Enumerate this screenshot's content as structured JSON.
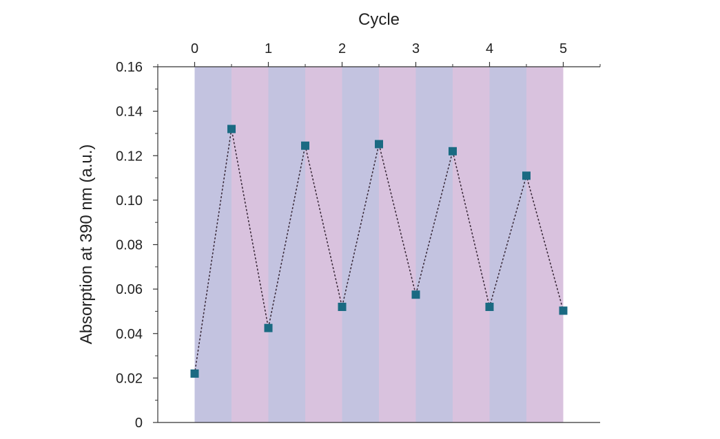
{
  "chart_data": {
    "type": "scatter",
    "title": "",
    "xlabel": "Cycle",
    "ylabel": "Absorption at 390 nm (a.u.)",
    "xlim": [
      -0.5,
      5.5
    ],
    "ylim": [
      0,
      0.16
    ],
    "x_ticks": [
      0,
      1,
      2,
      3,
      4,
      5
    ],
    "x_tick_labels": [
      "0",
      "1",
      "2",
      "3",
      "4",
      "5"
    ],
    "y_ticks": [
      0,
      0.02,
      0.04,
      0.06,
      0.08,
      0.1,
      0.12,
      0.14,
      0.16
    ],
    "y_tick_labels": [
      "0",
      "0.02",
      "0.04",
      "0.06",
      "0.08",
      "0.10",
      "0.12",
      "0.14",
      "0.16"
    ],
    "x_axis_position": "top",
    "grid": false,
    "legend": "none",
    "line_style": "dotted",
    "series": [
      {
        "x": [
          0,
          0.5,
          1,
          1.5,
          2,
          2.5,
          3,
          3.5,
          4,
          4.5,
          5
        ],
        "values": [
          0.022,
          0.132,
          0.0425,
          0.1245,
          0.052,
          0.1252,
          0.0575,
          0.122,
          0.052,
          0.111,
          0.0503
        ],
        "color": "#1a6a82"
      }
    ],
    "shaded_bands": [
      {
        "from": 0,
        "to": 0.5,
        "color": "#c3c3e0"
      },
      {
        "from": 0.5,
        "to": 1,
        "color": "#d9c2de"
      },
      {
        "from": 1,
        "to": 1.5,
        "color": "#c3c3e0"
      },
      {
        "from": 1.5,
        "to": 2,
        "color": "#d9c2de"
      },
      {
        "from": 2,
        "to": 2.5,
        "color": "#c3c3e0"
      },
      {
        "from": 2.5,
        "to": 3,
        "color": "#d9c2de"
      },
      {
        "from": 3,
        "to": 3.5,
        "color": "#c3c3e0"
      },
      {
        "from": 3.5,
        "to": 4,
        "color": "#d9c2de"
      },
      {
        "from": 4,
        "to": 4.5,
        "color": "#c3c3e0"
      },
      {
        "from": 4.5,
        "to": 5,
        "color": "#d9c2de"
      }
    ]
  }
}
